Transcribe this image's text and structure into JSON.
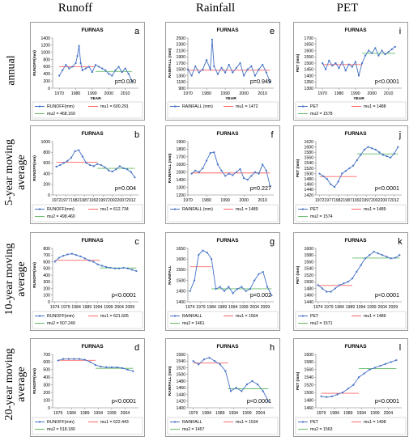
{
  "columns": [
    "Runoff",
    "Rainfall",
    "PET"
  ],
  "rows": [
    "annual",
    "5-year moving|average",
    "10-year moving|average",
    "20-year moving|average"
  ],
  "colors": {
    "data": "#4472C4",
    "mu1": "#FF6666",
    "mu2": "#66BB66",
    "frame": "#9a9a9a"
  },
  "chart_data": [
    {
      "id": "a",
      "type": "line",
      "title": "FURNAS",
      "letter": "a",
      "ylabel": "RUNOFF(mm)",
      "xlabel": "YEAR",
      "ylim": [
        0,
        1400
      ],
      "yticks": [
        0,
        200,
        400,
        600,
        800,
        1000,
        1200,
        1400
      ],
      "xlim": [
        1966,
        2018
      ],
      "xticks": [
        1970,
        1980,
        1990,
        2000,
        2010
      ],
      "x": [
        1970,
        1972,
        1974,
        1976,
        1978,
        1980,
        1981,
        1982,
        1983,
        1984,
        1986,
        1988,
        1990,
        1992,
        1994,
        1996,
        1998,
        2000,
        2002,
        2004,
        2006,
        2008,
        2010,
        2012,
        2014
      ],
      "values": [
        350,
        500,
        650,
        550,
        600,
        700,
        900,
        1180,
        700,
        500,
        550,
        600,
        450,
        650,
        600,
        550,
        500,
        400,
        350,
        500,
        600,
        450,
        550,
        400,
        200
      ],
      "mu1_value": 600.291,
      "mu1_range": [
        1970,
        1992
      ],
      "mu2_value": 468.169,
      "mu2_range": [
        1992,
        2014
      ],
      "pvalue": "p=0.030",
      "legend": [
        "RUNOFF(mm)",
        "mu1 = 600.291",
        "mu2 = 468.169"
      ]
    },
    {
      "id": "e",
      "type": "line",
      "title": "FURNAS",
      "letter": "e",
      "ylabel": "RAINFALL (mm)",
      "xlabel": "YEAR",
      "ylim": [
        900,
        2500
      ],
      "yticks": [
        900,
        1100,
        1300,
        1500,
        1700,
        1900,
        2100,
        2300,
        2500
      ],
      "xlim": [
        1970,
        2016
      ],
      "xticks": [
        1970,
        1980,
        1990,
        2000,
        2010
      ],
      "x": [
        1970,
        1972,
        1974,
        1976,
        1978,
        1980,
        1982,
        1983,
        1984,
        1986,
        1988,
        1990,
        1992,
        1994,
        1996,
        1998,
        2000,
        2002,
        2004,
        2006,
        2008,
        2010,
        2012,
        2014
      ],
      "values": [
        1500,
        1300,
        1600,
        1400,
        1500,
        1800,
        1500,
        2450,
        1600,
        1350,
        1550,
        1400,
        1650,
        1400,
        1550,
        1700,
        1300,
        1500,
        1600,
        1300,
        1500,
        1650,
        1400,
        1100
      ],
      "mu1_value": 1472,
      "mu1_range": [
        1970,
        2014
      ],
      "mu2_value": null,
      "mu2_range": null,
      "pvalue": "p=0.949",
      "legend": [
        "RAINFALL (mm)",
        "mu1 = 1472"
      ]
    },
    {
      "id": "i",
      "type": "line",
      "title": "FURNAS",
      "letter": "i",
      "ylabel": "PET (mm)",
      "xlabel": "YEAR",
      "ylim": [
        1300,
        1700
      ],
      "yticks": [
        1300,
        1350,
        1400,
        1450,
        1500,
        1550,
        1600,
        1650,
        1700
      ],
      "xlim": [
        1966,
        2018
      ],
      "xticks": [
        1970,
        1980,
        1990,
        2000,
        2010
      ],
      "x": [
        1970,
        1972,
        1974,
        1976,
        1978,
        1980,
        1982,
        1984,
        1986,
        1988,
        1990,
        1992,
        1994,
        1996,
        1998,
        2000,
        2002,
        2004,
        2006,
        2008,
        2010,
        2012,
        2014
      ],
      "values": [
        1500,
        1450,
        1520,
        1480,
        1500,
        1460,
        1510,
        1440,
        1490,
        1470,
        1510,
        1400,
        1500,
        1560,
        1600,
        1580,
        1620,
        1560,
        1600,
        1570,
        1590,
        1610,
        1630
      ],
      "mu1_value": 1488,
      "mu1_range": [
        1970,
        1994
      ],
      "mu2_value": 1578,
      "mu2_range": [
        1994,
        2014
      ],
      "pvalue": "p<0.0001",
      "legend": [
        "PET",
        "mu1 = 1488",
        "mu2 = 1578"
      ]
    },
    {
      "id": "b",
      "type": "line",
      "title": "FURNAS",
      "letter": "b",
      "ylabel": "RUNOFF(mm)",
      "xlabel": "",
      "ylim": [
        0,
        1000
      ],
      "yticks": [
        0,
        200,
        400,
        600,
        800,
        1000
      ],
      "xlim": [
        1970,
        2016
      ],
      "xticks": [
        1972,
        1977,
        1982,
        1987,
        1992,
        1997,
        2002,
        2007,
        2012
      ],
      "x": [
        1972,
        1974,
        1976,
        1978,
        1980,
        1982,
        1984,
        1986,
        1988,
        1990,
        1992,
        1994,
        1996,
        1998,
        2000,
        2002,
        2004,
        2006,
        2008,
        2010,
        2012,
        2014
      ],
      "values": [
        530,
        560,
        600,
        640,
        700,
        820,
        840,
        720,
        600,
        560,
        540,
        580,
        560,
        520,
        460,
        440,
        480,
        540,
        500,
        480,
        430,
        330
      ],
      "mu1_value": 612.734,
      "mu1_range": [
        1972,
        1994
      ],
      "mu2_value": 498.46,
      "mu2_range": [
        1994,
        2014
      ],
      "pvalue": "p=0.004",
      "legend": [
        "RUNOFF(mm)",
        "mu1 = 612.734",
        "mu2 = 498.460"
      ]
    },
    {
      "id": "f",
      "type": "line",
      "title": "FURNAS",
      "letter": "f",
      "ylabel": "RAINFALL (mm)",
      "xlabel": "",
      "ylim": [
        1200,
        1900
      ],
      "yticks": [
        1200,
        1300,
        1400,
        1500,
        1600,
        1700,
        1800,
        1900
      ],
      "xlim": [
        1970,
        2016
      ],
      "xticks": [
        1970,
        1980,
        1990,
        2000,
        2010
      ],
      "x": [
        1972,
        1974,
        1976,
        1978,
        1980,
        1982,
        1984,
        1986,
        1988,
        1990,
        1992,
        1994,
        1996,
        1998,
        2000,
        2002,
        2004,
        2006,
        2008,
        2010,
        2012,
        2014
      ],
      "values": [
        1480,
        1520,
        1500,
        1550,
        1650,
        1750,
        1760,
        1600,
        1520,
        1450,
        1480,
        1460,
        1500,
        1540,
        1420,
        1400,
        1450,
        1500,
        1480,
        1600,
        1520,
        1320
      ],
      "mu1_value": 1489,
      "mu1_range": [
        1972,
        2014
      ],
      "mu2_value": null,
      "mu2_range": null,
      "pvalue": "p=0.227",
      "legend": [
        "RAINFALL (mm)",
        "mu1 = 1489"
      ]
    },
    {
      "id": "j",
      "type": "line",
      "title": "FURNAS",
      "letter": "j",
      "ylabel": "PET (mm)",
      "xlabel": "",
      "ylim": [
        1420,
        1620
      ],
      "yticks": [
        1420,
        1440,
        1460,
        1480,
        1500,
        1520,
        1540,
        1560,
        1580,
        1600,
        1620
      ],
      "xlim": [
        1970,
        2016
      ],
      "xticks": [
        1972,
        1977,
        1982,
        1987,
        1992,
        1997,
        2002,
        2007,
        2012
      ],
      "x": [
        1972,
        1974,
        1976,
        1978,
        1980,
        1982,
        1984,
        1986,
        1988,
        1990,
        1992,
        1994,
        1996,
        1998,
        2000,
        2002,
        2004,
        2006,
        2008,
        2010,
        2012,
        2014
      ],
      "values": [
        1500,
        1490,
        1480,
        1460,
        1450,
        1470,
        1500,
        1510,
        1520,
        1530,
        1550,
        1570,
        1590,
        1600,
        1595,
        1590,
        1580,
        1570,
        1565,
        1560,
        1575,
        1600
      ],
      "mu1_value": 1489,
      "mu1_range": [
        1972,
        1992
      ],
      "mu2_value": 1574,
      "mu2_range": [
        1992,
        2014
      ],
      "pvalue": "p<0.0001",
      "legend": [
        "PET",
        "mu1 = 1489",
        "mu2 = 1574"
      ]
    },
    {
      "id": "c",
      "type": "line",
      "title": "FURNAS",
      "letter": "c",
      "ylabel": "RUNOFF(mm)",
      "xlabel": "",
      "ylim": [
        0,
        800
      ],
      "yticks": [
        0,
        100,
        200,
        300,
        400,
        500,
        600,
        700,
        800
      ],
      "xlim": [
        1973,
        2013
      ],
      "xticks": [
        1974,
        1979,
        1984,
        1989,
        1994,
        1999,
        2004,
        2009
      ],
      "x": [
        1974,
        1976,
        1978,
        1980,
        1982,
        1984,
        1986,
        1988,
        1990,
        1992,
        1994,
        1996,
        1998,
        2000,
        2002,
        2004,
        2006,
        2008,
        2010,
        2012
      ],
      "values": [
        600,
        660,
        690,
        710,
        720,
        700,
        680,
        650,
        620,
        600,
        560,
        540,
        520,
        510,
        500,
        500,
        510,
        500,
        480,
        460
      ],
      "mu1_value": 621.605,
      "mu1_range": [
        1974,
        1995
      ],
      "mu2_value": 507.249,
      "mu2_range": [
        1995,
        2012
      ],
      "pvalue": "p<0.0001",
      "legend": [
        "RUNOFF(mm)",
        "mu1 = 621.605",
        "mu2 = 507.249"
      ]
    },
    {
      "id": "g",
      "type": "line",
      "title": "FURNAS",
      "letter": "g",
      "ylabel": "RAINFALL",
      "xlabel": "",
      "ylim": [
        1400,
        1650
      ],
      "yticks": [
        1400,
        1450,
        1500,
        1550,
        1600,
        1650
      ],
      "xlim": [
        1973,
        2013
      ],
      "xticks": [
        1974,
        1979,
        1984,
        1989,
        1994,
        1999,
        2004,
        2009
      ],
      "x": [
        1974,
        1976,
        1978,
        1980,
        1982,
        1984,
        1986,
        1988,
        1990,
        1992,
        1994,
        1996,
        1998,
        2000,
        2002,
        2004,
        2006,
        2008,
        2010,
        2012
      ],
      "values": [
        1450,
        1500,
        1620,
        1640,
        1630,
        1600,
        1460,
        1470,
        1450,
        1470,
        1440,
        1460,
        1470,
        1450,
        1460,
        1500,
        1530,
        1540,
        1470,
        1430
      ],
      "mu1_value": 1564,
      "mu1_range": [
        1974,
        1984
      ],
      "mu2_value": 1461,
      "mu2_range": [
        1984,
        2012
      ],
      "pvalue": "p=0.002",
      "legend": [
        "RAINFALL",
        "mu1 = 1564",
        "mu2 = 1461"
      ]
    },
    {
      "id": "k",
      "type": "line",
      "title": "FURNAS",
      "letter": "k",
      "ylabel": "PET (mm)",
      "xlabel": "",
      "ylim": [
        1440,
        1600
      ],
      "yticks": [
        1440,
        1460,
        1480,
        1500,
        1520,
        1540,
        1560,
        1580,
        1600
      ],
      "xlim": [
        1973,
        2013
      ],
      "xticks": [
        1974,
        1979,
        1984,
        1989,
        1994,
        1999,
        2004,
        2009
      ],
      "x": [
        1974,
        1976,
        1978,
        1980,
        1982,
        1984,
        1986,
        1988,
        1990,
        1992,
        1994,
        1996,
        1998,
        2000,
        2002,
        2004,
        2006,
        2008,
        2010,
        2012
      ],
      "values": [
        1490,
        1480,
        1470,
        1470,
        1480,
        1490,
        1495,
        1500,
        1510,
        1530,
        1550,
        1570,
        1580,
        1590,
        1585,
        1580,
        1575,
        1570,
        1572,
        1580
      ],
      "mu1_value": 1489,
      "mu1_range": [
        1974,
        1990
      ],
      "mu2_value": 1571,
      "mu2_range": [
        1990,
        2012
      ],
      "pvalue": "p<0.0001",
      "legend": [
        "PET",
        "mu1 = 1489",
        "mu2 = 1571"
      ]
    },
    {
      "id": "d",
      "type": "line",
      "title": "FURNAS",
      "letter": "d",
      "ylabel": "RUNOFF(mm)",
      "xlabel": "",
      "ylim": [
        0,
        700
      ],
      "yticks": [
        0,
        100,
        200,
        300,
        400,
        500,
        600,
        700
      ],
      "xlim": [
        1977,
        2009
      ],
      "xticks": [
        1979,
        1984,
        1989,
        1994,
        1999,
        2004
      ],
      "x": [
        1979,
        1981,
        1983,
        1985,
        1987,
        1989,
        1991,
        1993,
        1995,
        1997,
        1999,
        2001,
        2003,
        2005,
        2007
      ],
      "values": [
        620,
        640,
        640,
        640,
        640,
        630,
        600,
        560,
        540,
        530,
        530,
        530,
        520,
        500,
        480
      ],
      "mu1_value": 622.443,
      "mu1_range": [
        1979,
        1993
      ],
      "mu2_value": 518.18,
      "mu2_range": [
        1993,
        2007
      ],
      "pvalue": "p<0.0001",
      "legend": [
        "RUNOFF(mm)",
        "mu1 = 622.443",
        "mu2 = 518.180"
      ]
    },
    {
      "id": "h",
      "type": "line",
      "title": "FURNAS",
      "letter": "h",
      "ylabel": "RAINFALL (mm)",
      "xlabel": "",
      "ylim": [
        1400,
        1560
      ],
      "yticks": [
        1400,
        1420,
        1440,
        1460,
        1480,
        1500,
        1520,
        1540,
        1560
      ],
      "xlim": [
        1977,
        2009
      ],
      "xticks": [
        1979,
        1984,
        1989,
        1994,
        1999,
        2004
      ],
      "x": [
        1979,
        1981,
        1983,
        1985,
        1987,
        1989,
        1991,
        1993,
        1995,
        1997,
        1999,
        2001,
        2003,
        2005,
        2007
      ],
      "values": [
        1540,
        1530,
        1545,
        1550,
        1540,
        1530,
        1510,
        1450,
        1460,
        1450,
        1470,
        1480,
        1470,
        1450,
        1420
      ],
      "mu1_value": 1534,
      "mu1_range": [
        1979,
        1992
      ],
      "mu2_value": 1457,
      "mu2_range": [
        1992,
        2007
      ],
      "pvalue": "p<0.0001",
      "legend": [
        "RAINFALL",
        "mu1 = 1534",
        "mu2 = 1457"
      ]
    },
    {
      "id": "l",
      "type": "line",
      "title": "FURNAS",
      "letter": "l",
      "ylabel": "PET (mm)",
      "xlabel": "",
      "ylim": [
        1460,
        1600
      ],
      "yticks": [
        1460,
        1480,
        1500,
        1520,
        1540,
        1560,
        1580,
        1600
      ],
      "xlim": [
        1977,
        2009
      ],
      "xticks": [
        1979,
        1984,
        1989,
        1994,
        1999,
        2004
      ],
      "x": [
        1979,
        1981,
        1983,
        1985,
        1987,
        1989,
        1991,
        1993,
        1995,
        1997,
        1999,
        2001,
        2003,
        2005,
        2007
      ],
      "values": [
        1490,
        1488,
        1490,
        1495,
        1500,
        1510,
        1520,
        1540,
        1550,
        1560,
        1565,
        1570,
        1575,
        1580,
        1585
      ],
      "mu1_value": 1498,
      "mu1_range": [
        1979,
        1993
      ],
      "mu2_value": 1563,
      "mu2_range": [
        1993,
        2007
      ],
      "pvalue": "p<0.0001",
      "legend": [
        "PET",
        "mu1 = 1498",
        "mu2 = 1563"
      ]
    }
  ]
}
